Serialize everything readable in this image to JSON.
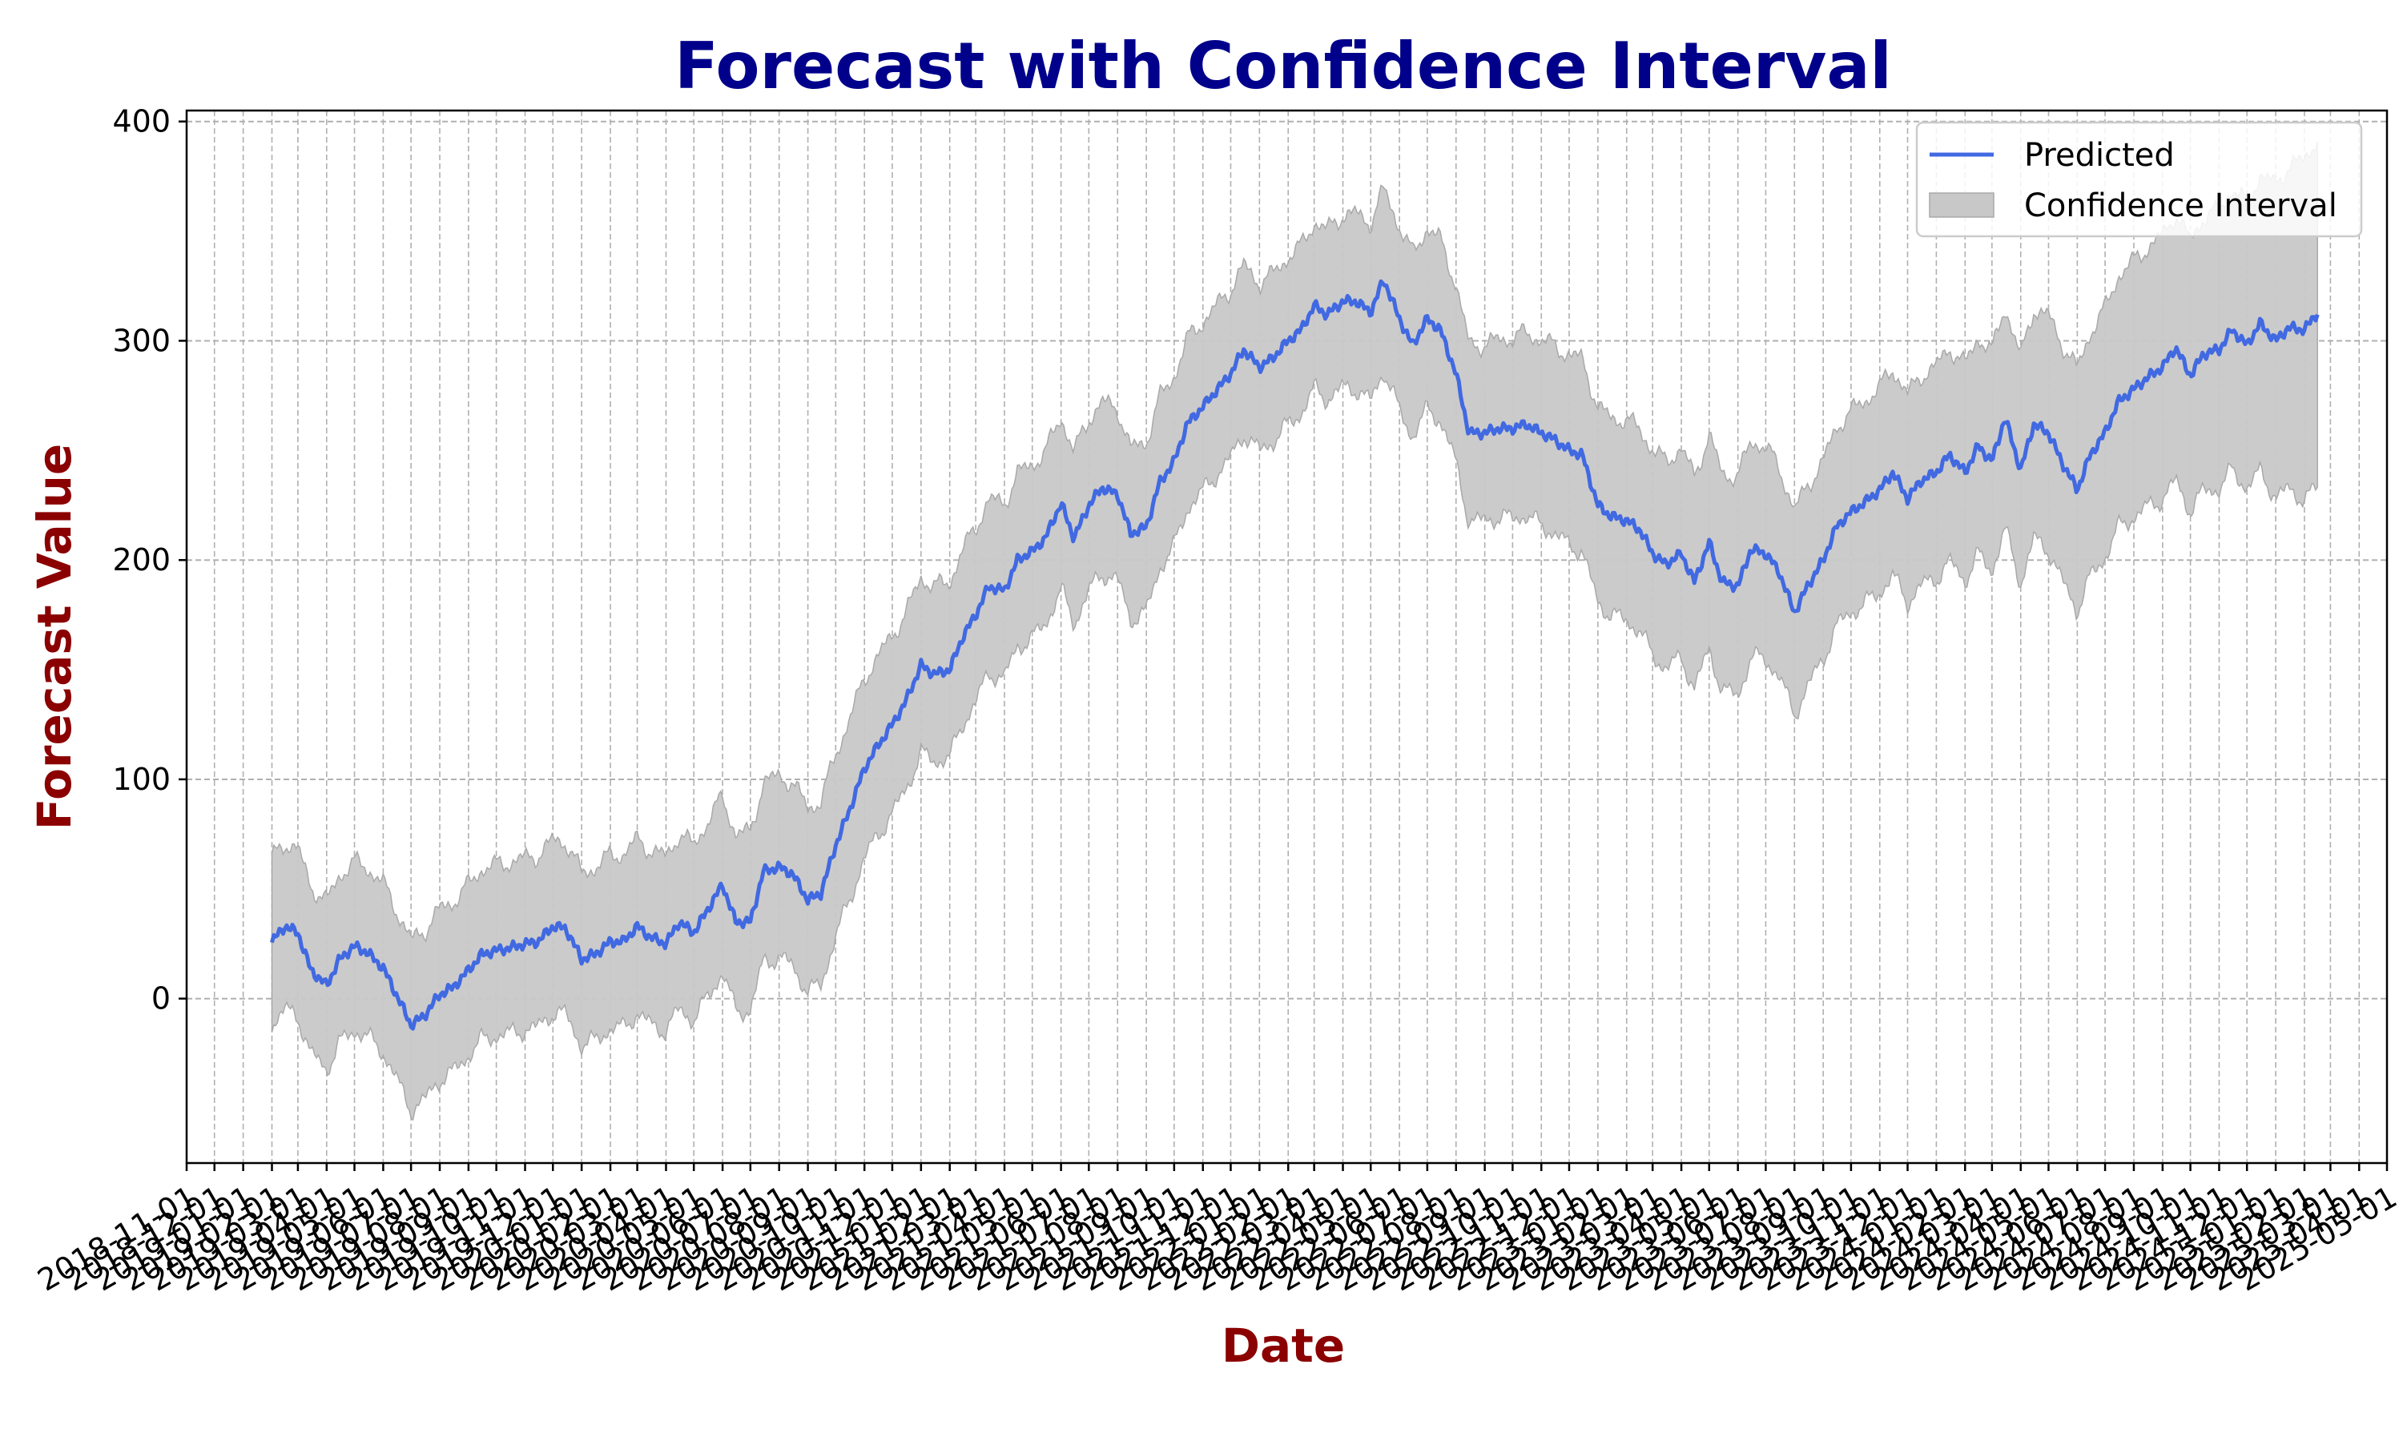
{
  "chart_data": {
    "type": "line",
    "title": "Forecast with Confidence Interval",
    "xlabel": "Date",
    "ylabel": "Forecast Value",
    "xlim": [
      "2018-11-01",
      "2025-05-01"
    ],
    "ylim": [
      -75,
      405
    ],
    "yticks": [
      0,
      100,
      200,
      300,
      400
    ],
    "x_tick_interval": "monthly",
    "grid": true,
    "legend_position": "top-right",
    "x_start": "2019-02-01",
    "x_end": "2025-02-15",
    "predicted_anchor_points": [
      [
        "2019-02-01",
        26
      ],
      [
        "2019-02-15",
        33
      ],
      [
        "2019-03-01",
        30
      ],
      [
        "2019-03-15",
        13
      ],
      [
        "2019-04-01",
        6
      ],
      [
        "2019-04-15",
        18
      ],
      [
        "2019-05-01",
        24
      ],
      [
        "2019-05-15",
        21
      ],
      [
        "2019-06-01",
        14
      ],
      [
        "2019-06-15",
        2
      ],
      [
        "2019-07-01",
        -12
      ],
      [
        "2019-07-15",
        -8
      ],
      [
        "2019-08-01",
        2
      ],
      [
        "2019-08-15",
        5
      ],
      [
        "2019-09-01",
        13
      ],
      [
        "2019-09-15",
        20
      ],
      [
        "2019-10-01",
        22
      ],
      [
        "2019-10-15",
        23
      ],
      [
        "2019-11-01",
        25
      ],
      [
        "2019-11-15",
        26
      ],
      [
        "2019-12-01",
        33
      ],
      [
        "2019-12-15",
        32
      ],
      [
        "2020-01-01",
        18
      ],
      [
        "2020-01-15",
        20
      ],
      [
        "2020-02-01",
        26
      ],
      [
        "2020-02-15",
        26
      ],
      [
        "2020-03-01",
        33
      ],
      [
        "2020-03-15",
        28
      ],
      [
        "2020-04-01",
        25
      ],
      [
        "2020-04-15",
        35
      ],
      [
        "2020-05-01",
        30
      ],
      [
        "2020-05-15",
        40
      ],
      [
        "2020-06-01",
        52
      ],
      [
        "2020-06-15",
        35
      ],
      [
        "2020-07-01",
        35
      ],
      [
        "2020-07-15",
        58
      ],
      [
        "2020-08-01",
        60
      ],
      [
        "2020-08-15",
        57
      ],
      [
        "2020-09-01",
        45
      ],
      [
        "2020-09-15",
        48
      ],
      [
        "2020-10-01",
        70
      ],
      [
        "2020-10-15",
        85
      ],
      [
        "2020-11-01",
        105
      ],
      [
        "2020-11-15",
        115
      ],
      [
        "2020-12-01",
        125
      ],
      [
        "2020-12-15",
        135
      ],
      [
        "2021-01-01",
        152
      ],
      [
        "2021-01-15",
        148
      ],
      [
        "2021-02-01",
        150
      ],
      [
        "2021-02-15",
        165
      ],
      [
        "2021-03-01",
        175
      ],
      [
        "2021-03-15",
        188
      ],
      [
        "2021-04-01",
        186
      ],
      [
        "2021-04-15",
        200
      ],
      [
        "2021-05-01",
        204
      ],
      [
        "2021-05-15",
        210
      ],
      [
        "2021-06-01",
        226
      ],
      [
        "2021-06-15",
        210
      ],
      [
        "2021-07-01",
        225
      ],
      [
        "2021-07-15",
        233
      ],
      [
        "2021-08-01",
        230
      ],
      [
        "2021-08-15",
        212
      ],
      [
        "2021-09-01",
        215
      ],
      [
        "2021-09-15",
        235
      ],
      [
        "2021-10-01",
        245
      ],
      [
        "2021-10-15",
        262
      ],
      [
        "2021-11-01",
        270
      ],
      [
        "2021-11-15",
        277
      ],
      [
        "2021-12-01",
        285
      ],
      [
        "2021-12-15",
        296
      ],
      [
        "2022-01-01",
        288
      ],
      [
        "2022-01-15",
        292
      ],
      [
        "2022-02-01",
        300
      ],
      [
        "2022-02-15",
        305
      ],
      [
        "2022-03-01",
        316
      ],
      [
        "2022-03-15",
        312
      ],
      [
        "2022-04-01",
        318
      ],
      [
        "2022-04-15",
        318
      ],
      [
        "2022-05-01",
        313
      ],
      [
        "2022-05-15",
        328
      ],
      [
        "2022-06-01",
        310
      ],
      [
        "2022-06-15",
        298
      ],
      [
        "2022-07-01",
        310
      ],
      [
        "2022-07-15",
        305
      ],
      [
        "2022-08-01",
        285
      ],
      [
        "2022-08-15",
        258
      ],
      [
        "2022-09-01",
        258
      ],
      [
        "2022-09-15",
        260
      ],
      [
        "2022-10-01",
        260
      ],
      [
        "2022-10-15",
        262
      ],
      [
        "2022-11-01",
        258
      ],
      [
        "2022-11-15",
        255
      ],
      [
        "2022-12-01",
        250
      ],
      [
        "2022-12-15",
        248
      ],
      [
        "2023-01-01",
        225
      ],
      [
        "2023-01-15",
        220
      ],
      [
        "2023-02-01",
        218
      ],
      [
        "2023-02-15",
        214
      ],
      [
        "2023-03-01",
        203
      ],
      [
        "2023-03-15",
        198
      ],
      [
        "2023-04-01",
        203
      ],
      [
        "2023-04-15",
        190
      ],
      [
        "2023-05-01",
        208
      ],
      [
        "2023-05-15",
        190
      ],
      [
        "2023-06-01",
        188
      ],
      [
        "2023-06-15",
        205
      ],
      [
        "2023-07-01",
        203
      ],
      [
        "2023-07-15",
        195
      ],
      [
        "2023-08-01",
        176
      ],
      [
        "2023-08-15",
        188
      ],
      [
        "2023-09-01",
        200
      ],
      [
        "2023-09-15",
        215
      ],
      [
        "2023-10-01",
        222
      ],
      [
        "2023-10-15",
        226
      ],
      [
        "2023-11-01",
        232
      ],
      [
        "2023-11-15",
        240
      ],
      [
        "2023-12-01",
        228
      ],
      [
        "2023-12-15",
        236
      ],
      [
        "2024-01-01",
        240
      ],
      [
        "2024-01-15",
        248
      ],
      [
        "2024-02-01",
        240
      ],
      [
        "2024-02-15",
        252
      ],
      [
        "2024-03-01",
        245
      ],
      [
        "2024-03-15",
        265
      ],
      [
        "2024-04-01",
        241
      ],
      [
        "2024-04-15",
        262
      ],
      [
        "2024-05-01",
        258
      ],
      [
        "2024-05-15",
        245
      ],
      [
        "2024-06-01",
        232
      ],
      [
        "2024-06-15",
        248
      ],
      [
        "2024-07-01",
        258
      ],
      [
        "2024-07-15",
        272
      ],
      [
        "2024-08-01",
        278
      ],
      [
        "2024-08-15",
        283
      ],
      [
        "2024-09-01",
        288
      ],
      [
        "2024-09-15",
        297
      ],
      [
        "2024-10-01",
        284
      ],
      [
        "2024-10-15",
        294
      ],
      [
        "2024-11-01",
        296
      ],
      [
        "2024-11-15",
        305
      ],
      [
        "2024-12-01",
        298
      ],
      [
        "2024-12-15",
        308
      ],
      [
        "2025-01-01",
        300
      ],
      [
        "2025-01-15",
        306
      ],
      [
        "2025-02-01",
        305
      ],
      [
        "2025-02-15",
        313
      ]
    ],
    "confidence_halfwidth_anchor_points": [
      [
        "2019-02-01",
        38
      ],
      [
        "2020-06-01",
        40
      ],
      [
        "2020-09-01",
        42
      ],
      [
        "2021-01-01",
        40
      ],
      [
        "2022-03-01",
        38
      ],
      [
        "2022-06-01",
        42
      ],
      [
        "2022-09-01",
        40
      ],
      [
        "2023-06-01",
        50
      ],
      [
        "2023-09-01",
        45
      ],
      [
        "2024-03-01",
        50
      ],
      [
        "2024-06-01",
        55
      ],
      [
        "2024-09-01",
        60
      ],
      [
        "2024-12-01",
        65
      ],
      [
        "2025-02-15",
        80
      ]
    ],
    "series": [
      {
        "name": "Predicted",
        "color": "#4169e1"
      },
      {
        "name": "Confidence Interval",
        "color": "#c8c8c8"
      }
    ],
    "x_tick_labels": [
      "2018-11-01",
      "2018-12-01",
      "2019-01-01",
      "2019-02-01",
      "2019-03-01",
      "2019-04-01",
      "2019-05-01",
      "2019-06-01",
      "2019-07-01",
      "2019-08-01",
      "2019-09-01",
      "2019-10-01",
      "2019-11-01",
      "2019-12-01",
      "2020-01-01",
      "2020-02-01",
      "2020-03-01",
      "2020-04-01",
      "2020-05-01",
      "2020-06-01",
      "2020-07-01",
      "2020-08-01",
      "2020-09-01",
      "2020-10-01",
      "2020-11-01",
      "2020-12-01",
      "2021-01-01",
      "2021-02-01",
      "2021-03-01",
      "2021-04-01",
      "2021-05-01",
      "2021-06-01",
      "2021-07-01",
      "2021-08-01",
      "2021-09-01",
      "2021-10-01",
      "2021-11-01",
      "2021-12-01",
      "2022-01-01",
      "2022-02-01",
      "2022-03-01",
      "2022-04-01",
      "2022-05-01",
      "2022-06-01",
      "2022-07-01",
      "2022-08-01",
      "2022-09-01",
      "2022-10-01",
      "2022-11-01",
      "2022-12-01",
      "2023-01-01",
      "2023-02-01",
      "2023-03-01",
      "2023-04-01",
      "2023-05-01",
      "2023-06-01",
      "2023-07-01",
      "2023-08-01",
      "2023-09-01",
      "2023-10-01",
      "2023-11-01",
      "2023-12-01",
      "2024-01-01",
      "2024-02-01",
      "2024-03-01",
      "2024-04-01",
      "2024-05-01",
      "2024-06-01",
      "2024-07-01",
      "2024-08-01",
      "2024-09-01",
      "2024-10-01",
      "2024-11-01",
      "2024-12-01",
      "2025-01-01",
      "2025-02-01",
      "2025-03-01",
      "2025-04-01",
      "2025-05-01"
    ]
  }
}
